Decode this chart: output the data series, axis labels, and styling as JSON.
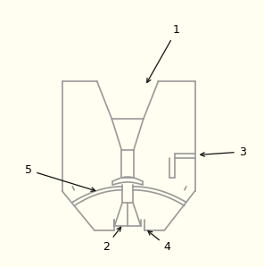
{
  "bg_color": "#fffef0",
  "line_color": "#999999",
  "line_width": 1.2,
  "arrow_color": "#111111",
  "label_color": "#000000",
  "label_fontsize": 9
}
